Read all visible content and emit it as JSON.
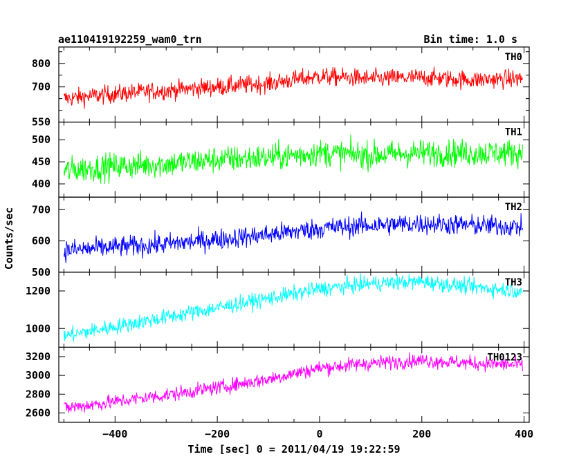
{
  "header": {
    "title": "ae110419192259_wam0_trn",
    "bin_time": "Bin time: 1.0 s"
  },
  "chart_data": {
    "type": "line",
    "title": "ae110419192259_wam0_trn",
    "xlabel": "Time [sec] 0 = 2011/04/19 19:22:59",
    "ylabel": "Counts/sec",
    "xlim": [
      -510,
      410
    ],
    "x_ticks": [
      -400,
      -200,
      0,
      200,
      400
    ],
    "x_tick_labels": [
      "−400",
      "−200",
      "0",
      "200",
      "400"
    ],
    "x_range": [
      -500,
      397
    ],
    "bin_seconds": 1,
    "grid": false,
    "legend": "none",
    "panels": [
      {
        "name": "TH0",
        "color": "#ff0000",
        "ylim": [
          550,
          870
        ],
        "y_ticks": [
          550,
          600,
          650,
          700,
          750,
          800,
          850
        ],
        "y_tick_labels": [
          "550",
          "700",
          "800"
        ],
        "y_labeled_ticks": [
          550,
          700,
          800
        ],
        "trend_x": [
          -500,
          -400,
          -300,
          -200,
          -100,
          0,
          100,
          200,
          300,
          397
        ],
        "trend_y": [
          650,
          670,
          685,
          700,
          715,
          745,
          735,
          740,
          730,
          735
        ],
        "noise_amplitude": 28
      },
      {
        "name": "TH1",
        "color": "#00ff00",
        "ylim": [
          370,
          540
        ],
        "y_ticks": [
          400,
          450,
          500
        ],
        "y_tick_labels": [
          "400",
          "450",
          "500"
        ],
        "y_labeled_ticks": [
          400,
          450,
          500
        ],
        "trend_x": [
          -500,
          -400,
          -300,
          -200,
          -100,
          0,
          100,
          200,
          300,
          397
        ],
        "trend_y": [
          430,
          440,
          445,
          455,
          460,
          470,
          465,
          470,
          470,
          470
        ],
        "noise_amplitude": 22
      },
      {
        "name": "TH2",
        "color": "#0000ff",
        "ylim": [
          500,
          740
        ],
        "y_ticks": [
          500,
          600,
          700
        ],
        "y_tick_labels": [
          "500",
          "600",
          "700"
        ],
        "y_labeled_ticks": [
          500,
          600,
          700
        ],
        "trend_x": [
          -500,
          -400,
          -300,
          -200,
          -100,
          0,
          100,
          200,
          300,
          397
        ],
        "trend_y": [
          570,
          580,
          590,
          605,
          620,
          640,
          650,
          655,
          650,
          645
        ],
        "noise_amplitude": 24
      },
      {
        "name": "TH3",
        "color": "#00ffff",
        "ylim": [
          900,
          1300
        ],
        "y_ticks": [
          1000,
          1200
        ],
        "y_tick_labels": [
          "1000",
          "1200"
        ],
        "y_labeled_ticks": [
          1000,
          1200
        ],
        "trend_x": [
          -500,
          -400,
          -300,
          -200,
          -100,
          0,
          100,
          200,
          300,
          397
        ],
        "trend_y": [
          960,
          1010,
          1060,
          1110,
          1160,
          1210,
          1240,
          1250,
          1220,
          1200
        ],
        "noise_amplitude": 30
      },
      {
        "name": "TH0123",
        "color": "#ff00ff",
        "ylim": [
          2500,
          3300
        ],
        "y_ticks": [
          2600,
          2800,
          3000,
          3200
        ],
        "y_tick_labels": [
          "2600",
          "2800",
          "3000",
          "3200"
        ],
        "y_labeled_ticks": [
          2600,
          2800,
          3000,
          3200
        ],
        "trend_x": [
          -500,
          -400,
          -300,
          -200,
          -100,
          0,
          100,
          200,
          300,
          397
        ],
        "trend_y": [
          2650,
          2720,
          2790,
          2870,
          2960,
          3080,
          3130,
          3160,
          3130,
          3110
        ],
        "noise_amplitude": 55
      }
    ]
  }
}
